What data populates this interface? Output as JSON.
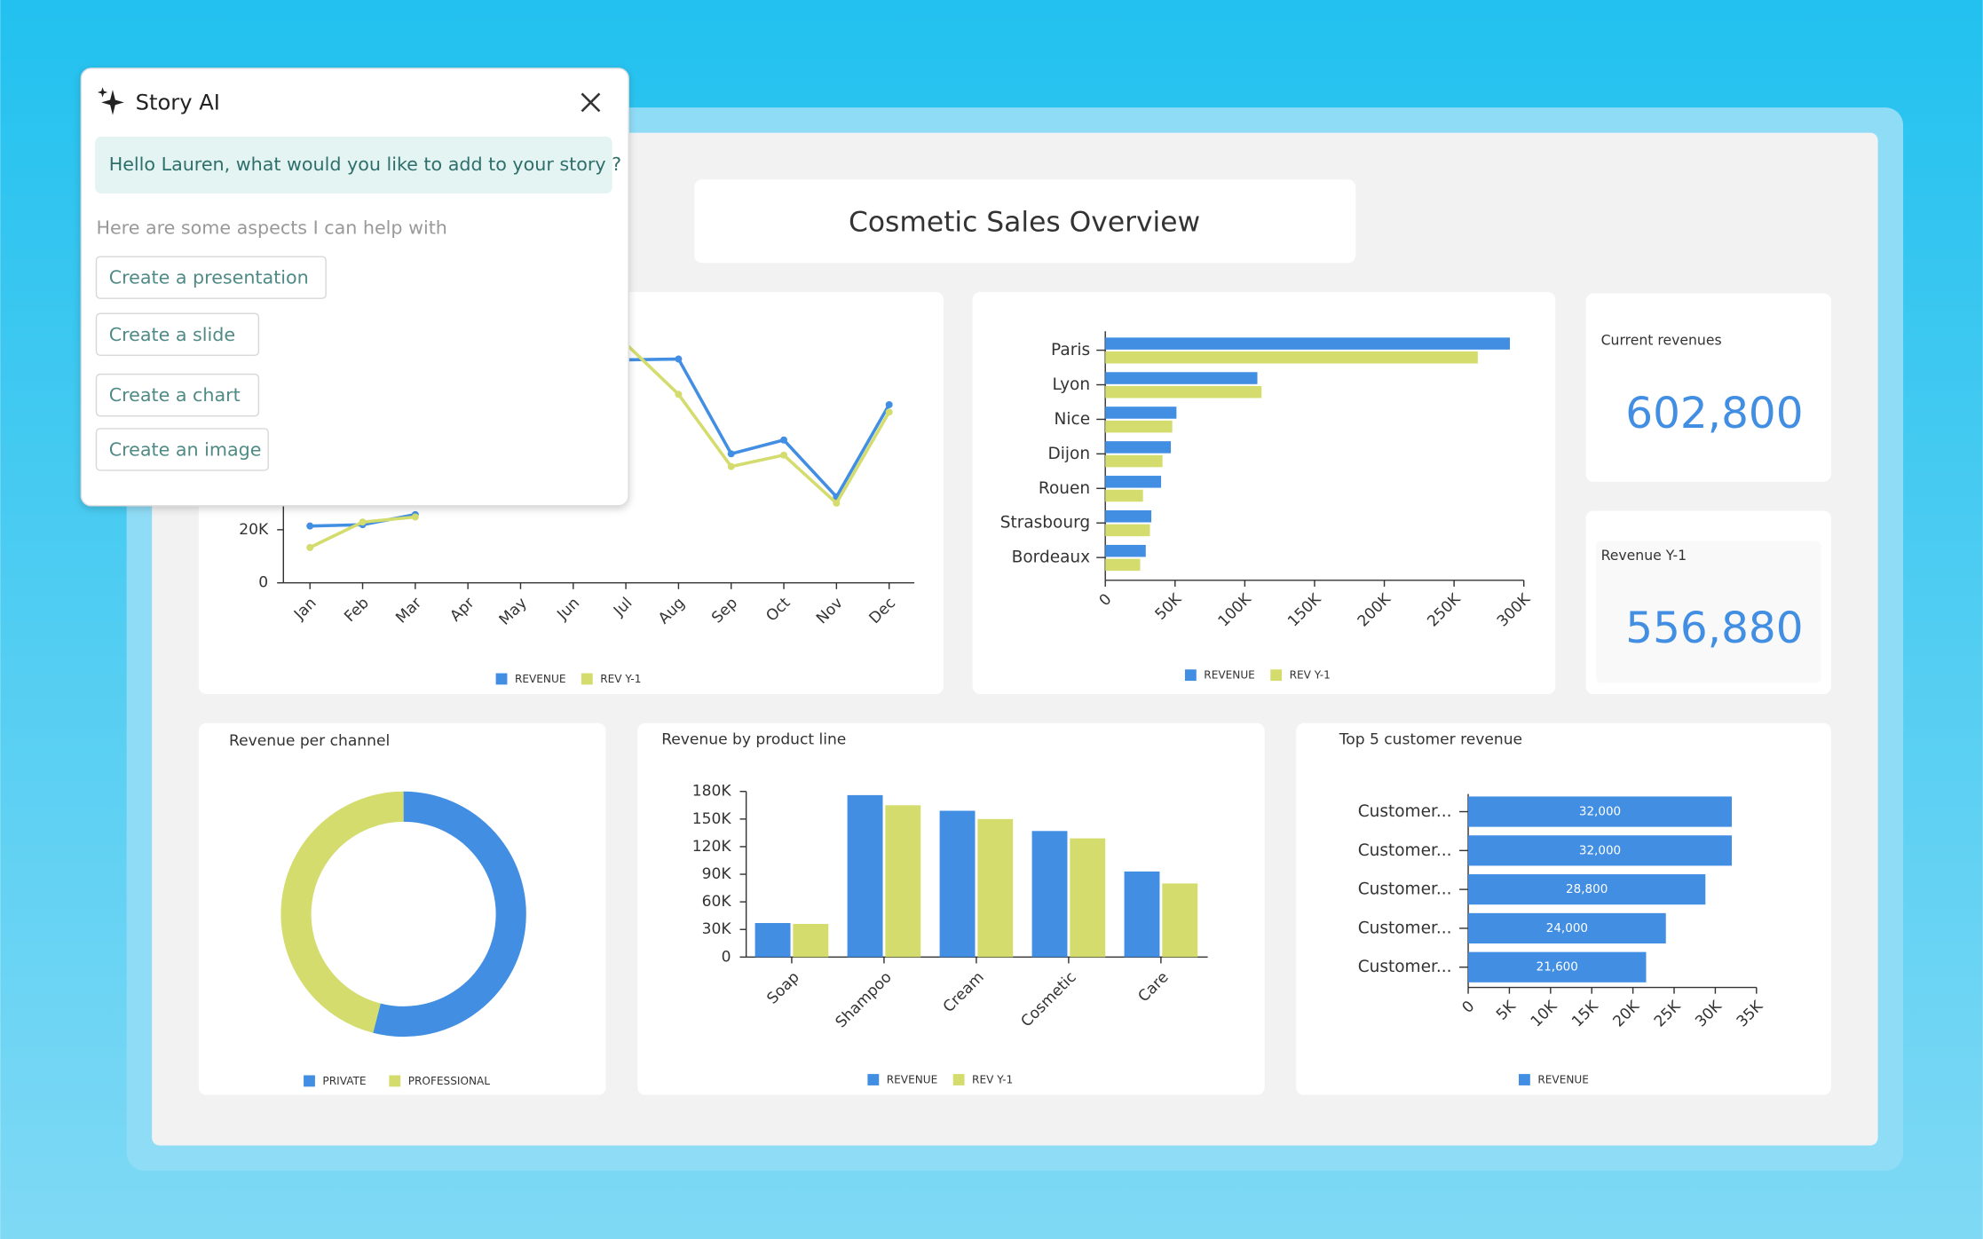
{
  "story_ai": {
    "title": "Story AI",
    "greeting": "Hello Lauren, what would you like to add to your story ?",
    "hint": "Here are some aspects I can help with",
    "actions": [
      "Create a presentation",
      "Create a slide",
      "Create a chart",
      "Create an image"
    ]
  },
  "dashboard": {
    "title": "Cosmetic Sales Overview",
    "kpis": [
      {
        "label": "Current revenues",
        "value": "602,800"
      },
      {
        "label": "Revenue Y-1",
        "value": "556,880"
      }
    ]
  },
  "chart_data": [
    {
      "type": "line",
      "categories": [
        "Jan",
        "Feb",
        "Mar",
        "Apr",
        "May",
        "Jun",
        "Jul",
        "Aug",
        "Sep",
        "Oct",
        "Nov",
        "Dec"
      ],
      "series": [
        {
          "name": "REVENUE",
          "color": "#418ee3",
          "values": [
            21400,
            21900,
            25700,
            null,
            null,
            null,
            84000,
            84300,
            48600,
            53800,
            32400,
            67100
          ]
        },
        {
          "name": "REV Y-1",
          "color": "#d3dc6c",
          "values": [
            13300,
            22900,
            24800,
            null,
            null,
            null,
            90000,
            71000,
            43800,
            48100,
            30000,
            64300
          ]
        }
      ],
      "ylim": [
        0,
        100000
      ],
      "yticks": [
        0,
        {
          "value": 20000,
          "label": "20K"
        }
      ]
    },
    {
      "type": "bar",
      "orientation": "horizontal",
      "categories": [
        "Paris",
        "Lyon",
        "Nice",
        "Dijon",
        "Rouen",
        "Strasbourg",
        "Bordeaux"
      ],
      "series": [
        {
          "name": "REVENUE",
          "color": "#418ee3",
          "values": [
            290000,
            109000,
            51000,
            47000,
            40000,
            33000,
            29000
          ]
        },
        {
          "name": "REV Y-1",
          "color": "#d3dc6c",
          "values": [
            267000,
            112000,
            48000,
            41000,
            27000,
            32000,
            25000
          ]
        }
      ],
      "xlim": [
        0,
        300000
      ],
      "xticks": [
        0,
        {
          "value": 50000,
          "label": "50K"
        },
        {
          "value": 100000,
          "label": "100K"
        },
        {
          "value": 150000,
          "label": "150K"
        },
        {
          "value": 200000,
          "label": "200K"
        },
        {
          "value": 250000,
          "label": "250K"
        },
        {
          "value": 300000,
          "label": "300K"
        }
      ]
    },
    {
      "type": "donut",
      "title": "Revenue per channel",
      "categories": [
        "PRIVATE",
        "PROFESSIONAL"
      ],
      "values": [
        54,
        46
      ],
      "colors": [
        "#418ee3",
        "#d3dc6c"
      ]
    },
    {
      "type": "bar",
      "orientation": "vertical",
      "title": "Revenue by product line",
      "categories": [
        "Soap",
        "Shampoo",
        "Cream",
        "Cosmetic",
        "Care"
      ],
      "series": [
        {
          "name": "REVENUE",
          "color": "#418ee3",
          "values": [
            37000,
            176000,
            159000,
            137000,
            93000
          ]
        },
        {
          "name": "REV Y-1",
          "color": "#d3dc6c",
          "values": [
            36000,
            165000,
            150000,
            129000,
            80000
          ]
        }
      ],
      "ylim": [
        0,
        180000
      ],
      "yticks": [
        0,
        {
          "value": 30000,
          "label": "30K"
        },
        {
          "value": 60000,
          "label": "60K"
        },
        {
          "value": 90000,
          "label": "90K"
        },
        {
          "value": 120000,
          "label": "120K"
        },
        {
          "value": 150000,
          "label": "150K"
        },
        {
          "value": 180000,
          "label": "180K"
        }
      ]
    },
    {
      "type": "bar",
      "orientation": "horizontal",
      "title": "Top 5 customer revenue",
      "categories": [
        "Customer...",
        "Customer...",
        "Customer...",
        "Customer...",
        "Customer..."
      ],
      "series": [
        {
          "name": "REVENUE",
          "color": "#418ee3",
          "values": [
            32000,
            32000,
            28800,
            24000,
            21600
          ],
          "value_labels": [
            "32,000",
            "32,000",
            "28,800",
            "24,000",
            "21,600"
          ]
        }
      ],
      "xlim": [
        0,
        35000
      ],
      "xticks": [
        0,
        {
          "value": 5000,
          "label": "5K"
        },
        {
          "value": 10000,
          "label": "10K"
        },
        {
          "value": 15000,
          "label": "15K"
        },
        {
          "value": 20000,
          "label": "20K"
        },
        {
          "value": 25000,
          "label": "25K"
        },
        {
          "value": 30000,
          "label": "30K"
        },
        {
          "value": 35000,
          "label": "35K"
        }
      ]
    }
  ]
}
